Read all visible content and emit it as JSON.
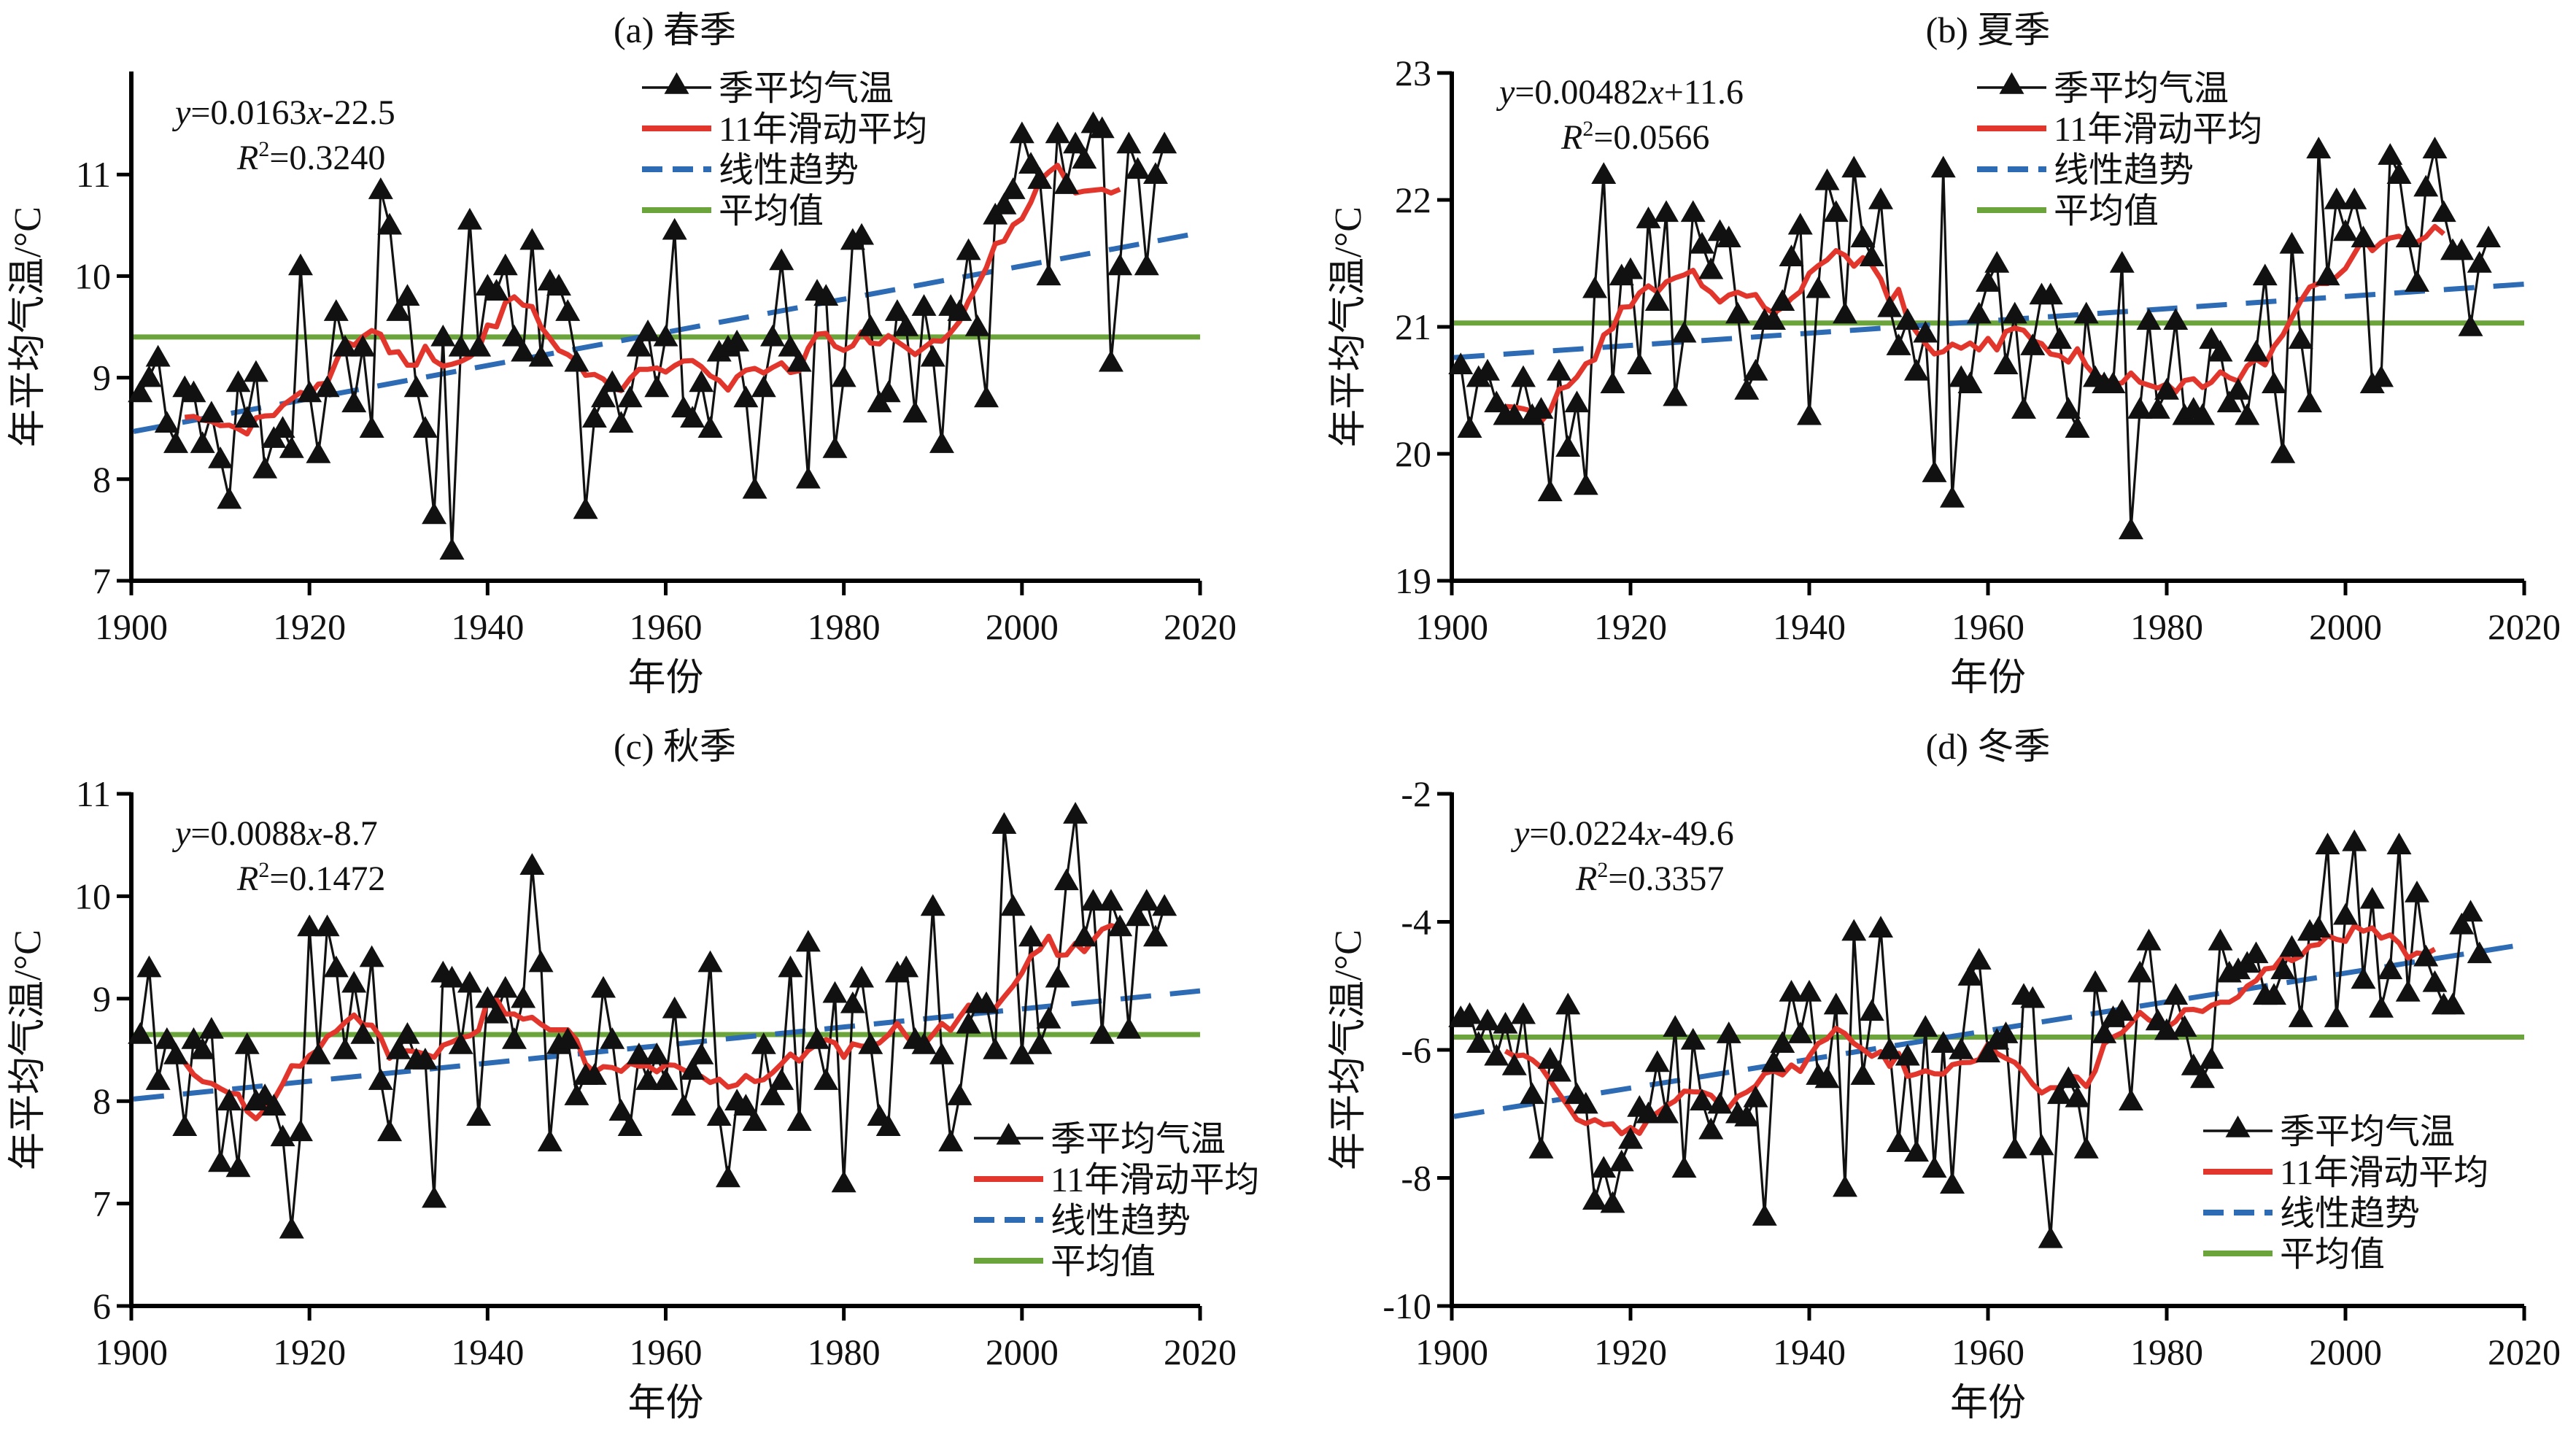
{
  "figure": {
    "legend_labels": [
      "季平均气温",
      "11年滑动平均",
      "线性趋势",
      "平均值"
    ],
    "xlabel": "年份",
    "ylabel": "年平均气温/°C",
    "colors": {
      "series": "#111111",
      "moving_avg": "#e2352c",
      "trend": "#2e6bb5",
      "mean": "#6aa43a"
    }
  },
  "chart_data": [
    {
      "type": "line",
      "title": "(a) 春季",
      "xlabel": "年份",
      "ylabel": "年平均气温/°C",
      "xlim": [
        1900,
        2020
      ],
      "ylim": [
        7,
        12
      ],
      "xticks": [
        1900,
        1920,
        1940,
        1960,
        1980,
        2000,
        2020
      ],
      "yticks": [
        7,
        8,
        9,
        10,
        11
      ],
      "legend_position": "top-right",
      "equation": {
        "slope": 0.0163,
        "intercept": -22.5,
        "text_y": "y",
        "text_body": "=0.0163",
        "text_x": "x",
        "text_tail": "-22.5",
        "r2_label": "R",
        "r2_value": "=0.3240"
      },
      "mean": 9.4,
      "moving_window": 11,
      "x_start": 1901,
      "values": [
        8.85,
        9.0,
        9.2,
        8.55,
        8.35,
        8.9,
        8.85,
        8.35,
        8.65,
        8.2,
        7.8,
        8.95,
        8.6,
        9.05,
        8.1,
        8.4,
        8.5,
        8.3,
        10.1,
        8.85,
        8.25,
        8.9,
        9.65,
        9.3,
        8.75,
        9.3,
        8.5,
        10.85,
        10.5,
        9.65,
        9.8,
        8.9,
        8.5,
        7.65,
        9.4,
        7.3,
        9.3,
        10.55,
        9.3,
        9.9,
        9.85,
        10.1,
        9.4,
        9.25,
        10.35,
        9.2,
        9.95,
        9.9,
        9.65,
        9.15,
        7.7,
        8.6,
        8.8,
        8.95,
        8.55,
        8.8,
        9.3,
        9.45,
        8.9,
        9.4,
        10.45,
        8.7,
        8.6,
        8.95,
        8.5,
        9.25,
        9.3,
        9.35,
        8.8,
        7.9,
        8.9,
        9.4,
        10.15,
        9.3,
        9.15,
        8.0,
        9.85,
        9.8,
        8.3,
        9.0,
        10.35,
        10.4,
        9.5,
        8.75,
        8.85,
        9.65,
        9.5,
        8.65,
        9.7,
        9.2,
        8.35,
        9.7,
        9.65,
        10.25,
        9.5,
        8.8,
        10.6,
        10.7,
        10.85,
        11.4,
        11.1,
        10.95,
        10.0,
        11.4,
        10.9,
        11.3,
        11.15,
        11.5,
        11.45,
        9.15,
        10.1,
        11.3,
        11.05,
        10.1,
        11.0,
        11.3
      ]
    },
    {
      "type": "line",
      "title": "(b) 夏季",
      "xlabel": "年份",
      "ylabel": "年平均气温/°C",
      "xlim": [
        1900,
        2020
      ],
      "ylim": [
        19,
        23
      ],
      "xticks": [
        1900,
        1920,
        1940,
        1960,
        1980,
        2000,
        2020
      ],
      "yticks": [
        19,
        20,
        21,
        22,
        23
      ],
      "legend_position": "top-right",
      "equation": {
        "slope": 0.00482,
        "intercept": 11.6,
        "text_y": "y",
        "text_body": "=0.00482",
        "text_x": "x",
        "text_tail": "+11.6",
        "r2_label": "R",
        "r2_value": "=0.0566"
      },
      "mean": 21.03,
      "moving_window": 11,
      "x_start": 1901,
      "values": [
        20.7,
        20.2,
        20.6,
        20.65,
        20.4,
        20.3,
        20.3,
        20.6,
        20.3,
        20.35,
        19.7,
        20.65,
        20.05,
        20.4,
        19.75,
        21.3,
        22.2,
        20.55,
        21.4,
        21.45,
        20.7,
        21.85,
        21.2,
        21.9,
        20.45,
        20.95,
        21.9,
        21.65,
        21.45,
        21.75,
        21.7,
        21.1,
        20.5,
        20.65,
        21.05,
        21.05,
        21.2,
        21.55,
        21.8,
        20.3,
        21.3,
        22.15,
        21.9,
        21.1,
        22.25,
        21.7,
        21.55,
        22.0,
        21.15,
        20.85,
        21.05,
        20.65,
        20.95,
        19.85,
        22.25,
        19.65,
        20.6,
        20.55,
        21.1,
        21.35,
        21.5,
        20.7,
        21.1,
        20.35,
        20.85,
        21.25,
        21.25,
        20.9,
        20.35,
        20.2,
        21.1,
        20.6,
        20.55,
        20.55,
        21.5,
        19.4,
        20.35,
        21.05,
        20.35,
        20.5,
        21.05,
        20.3,
        20.35,
        20.3,
        20.9,
        20.8,
        20.4,
        20.5,
        20.3,
        20.8,
        21.4,
        20.55,
        20.0,
        21.65,
        20.9,
        20.4,
        22.4,
        21.4,
        22.0,
        21.75,
        22.0,
        21.7,
        20.55,
        20.6,
        22.35,
        22.2,
        21.7,
        21.35,
        22.1,
        22.4,
        21.9,
        21.6,
        21.6,
        21.0,
        21.5,
        21.7
      ]
    },
    {
      "type": "line",
      "title": "(c) 秋季",
      "xlabel": "年份",
      "ylabel": "年平均气温/°C",
      "xlim": [
        1900,
        2020
      ],
      "ylim": [
        6,
        11
      ],
      "xticks": [
        1900,
        1920,
        1940,
        1960,
        1980,
        2000,
        2020
      ],
      "yticks": [
        6,
        7,
        8,
        9,
        10,
        11
      ],
      "legend_position": "bottom-right",
      "equation": {
        "slope": 0.0088,
        "intercept": -8.7,
        "text_y": "y",
        "text_body": "=0.0088",
        "text_x": "x",
        "text_tail": "-8.7",
        "r2_label": "R",
        "r2_value": "=0.1472"
      },
      "mean": 8.65,
      "moving_window": 11,
      "x_start": 1901,
      "values": [
        8.65,
        9.3,
        8.2,
        8.6,
        8.45,
        7.75,
        8.6,
        8.5,
        8.7,
        7.4,
        8.0,
        7.35,
        8.55,
        8.0,
        8.05,
        7.95,
        7.65,
        6.75,
        7.7,
        9.7,
        8.45,
        9.7,
        9.3,
        8.5,
        9.15,
        8.65,
        9.4,
        8.2,
        7.7,
        8.5,
        8.65,
        8.4,
        8.4,
        7.05,
        9.25,
        9.2,
        8.55,
        9.15,
        7.85,
        9.0,
        8.85,
        9.1,
        8.6,
        9.0,
        10.3,
        9.35,
        7.6,
        8.55,
        8.6,
        8.05,
        8.25,
        8.25,
        9.1,
        8.6,
        7.9,
        7.75,
        8.45,
        8.2,
        8.45,
        8.2,
        8.9,
        7.95,
        8.3,
        8.45,
        9.35,
        7.85,
        7.25,
        8.0,
        7.95,
        7.8,
        8.55,
        8.05,
        8.2,
        9.3,
        7.8,
        9.55,
        8.6,
        8.2,
        9.05,
        7.2,
        8.95,
        9.2,
        8.55,
        7.85,
        7.75,
        9.25,
        9.3,
        8.6,
        8.55,
        9.9,
        8.45,
        7.6,
        8.05,
        8.75,
        8.95,
        8.95,
        8.5,
        10.7,
        9.9,
        8.45,
        9.6,
        8.55,
        8.8,
        9.2,
        10.15,
        10.8,
        9.6,
        9.95,
        8.65,
        9.95,
        9.7,
        8.7,
        9.8,
        9.95,
        9.6,
        9.9
      ]
    },
    {
      "type": "line",
      "title": "(d) 冬季",
      "xlabel": "年份",
      "ylabel": "年平均气温/°C",
      "xlim": [
        1900,
        2020
      ],
      "ylim": [
        -10,
        -2
      ],
      "xticks": [
        1900,
        1920,
        1940,
        1960,
        1980,
        2000,
        2020
      ],
      "yticks": [
        -10,
        -8,
        -6,
        -4,
        -2
      ],
      "legend_position": "bottom-right",
      "equation": {
        "slope": 0.0224,
        "intercept": -49.6,
        "text_y": "y",
        "text_body": "=0.0224",
        "text_x": "x",
        "text_tail": "-49.6",
        "r2_label": "R",
        "r2_value": "=0.3357"
      },
      "mean": -5.8,
      "moving_window": 11,
      "x_start": 1901,
      "values": [
        -5.5,
        -5.45,
        -5.9,
        -5.55,
        -6.1,
        -5.6,
        -6.25,
        -5.45,
        -6.7,
        -7.55,
        -6.15,
        -6.35,
        -5.3,
        -6.7,
        -6.85,
        -8.35,
        -7.85,
        -8.4,
        -7.75,
        -7.4,
        -6.9,
        -7.0,
        -6.2,
        -7.0,
        -5.65,
        -7.85,
        -5.85,
        -6.8,
        -7.25,
        -6.85,
        -5.75,
        -7.0,
        -7.05,
        -6.75,
        -8.6,
        -6.2,
        -5.9,
        -5.1,
        -5.75,
        -5.1,
        -6.4,
        -6.45,
        -5.3,
        -8.15,
        -4.15,
        -6.4,
        -5.4,
        -4.1,
        -6.0,
        -7.45,
        -6.1,
        -7.6,
        -5.65,
        -7.85,
        -5.9,
        -8.1,
        -6.0,
        -4.85,
        -4.6,
        -6.05,
        -5.85,
        -5.75,
        -7.55,
        -5.15,
        -5.2,
        -7.5,
        -8.95,
        -6.7,
        -6.45,
        -6.75,
        -7.55,
        -4.95,
        -5.75,
        -5.5,
        -5.4,
        -6.8,
        -4.8,
        -4.3,
        -5.55,
        -5.7,
        -5.15,
        -5.65,
        -6.25,
        -6.45,
        -6.15,
        -4.3,
        -4.8,
        -4.75,
        -4.65,
        -4.5,
        -5.15,
        -5.15,
        -4.75,
        -4.4,
        -5.5,
        -4.15,
        -4.1,
        -2.8,
        -5.5,
        -3.9,
        -2.75,
        -4.9,
        -3.65,
        -5.35,
        -4.75,
        -2.8,
        -5.1,
        -3.55,
        -4.55,
        -4.95,
        -5.3,
        -5.3,
        -4.05,
        -3.85,
        -4.5
      ]
    }
  ]
}
